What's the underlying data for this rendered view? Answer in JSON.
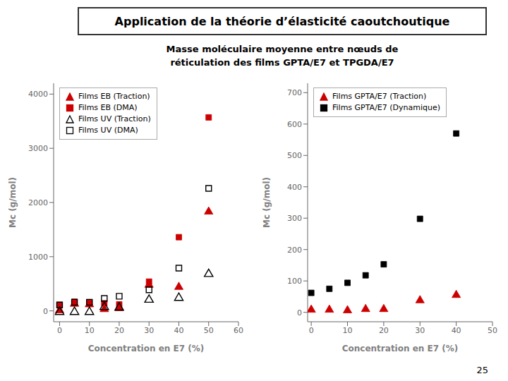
{
  "title": "Application de la théorie d’élasticité caoutchoutique",
  "subtitle": [
    "Masse moléculaire moyenne entre nœuds de",
    "réticulation des films GPTA/E7 et TPGDA/E7"
  ],
  "annotations": [
    "25"
  ],
  "chart_data": [
    {
      "type": "scatter",
      "xlabel": "Concentration en E7 (%)",
      "ylabel": "Mc (g/mol)",
      "xlim": [
        -2,
        60
      ],
      "ylim": [
        -200,
        4200
      ],
      "xticks": [
        0,
        10,
        20,
        30,
        40,
        50,
        60
      ],
      "yticks": [
        0,
        1000,
        2000,
        3000,
        4000
      ],
      "grid": false,
      "legend": "upper left",
      "series": [
        {
          "name": "Films EB (Traction)",
          "color": "#cc0000",
          "marker": "triangle",
          "x": [
            0,
            5,
            10,
            15,
            20,
            30,
            40,
            50
          ],
          "values": [
            10,
            130,
            120,
            30,
            50,
            480,
            440,
            1830
          ]
        },
        {
          "name": "Films EB (DMA)",
          "color": "#cc0000",
          "marker": "square",
          "x": [
            0,
            5,
            10,
            15,
            20,
            30,
            40,
            50
          ],
          "values": [
            110,
            170,
            160,
            140,
            120,
            540,
            1360,
            3570
          ]
        },
        {
          "name": "Films UV (Traction)",
          "color": "#000000",
          "marker": "triangle-open",
          "x": [
            0,
            5,
            10,
            15,
            20,
            30,
            40,
            50
          ],
          "values": [
            -20,
            -20,
            -20,
            70,
            60,
            205,
            240,
            680
          ]
        },
        {
          "name": "Films UV (DMA)",
          "color": "#000000",
          "marker": "square-open",
          "x": [
            0,
            5,
            10,
            15,
            20,
            30,
            40,
            50
          ],
          "values": [
            110,
            160,
            160,
            230,
            270,
            390,
            790,
            2260
          ]
        }
      ]
    },
    {
      "type": "scatter",
      "xlabel": "Concentration en E7 (%)",
      "ylabel": "Mc (g/mol)",
      "xlim": [
        -1,
        50
      ],
      "ylim": [
        -30,
        730
      ],
      "xticks": [
        0,
        10,
        20,
        30,
        40,
        50
      ],
      "yticks": [
        0,
        100,
        200,
        300,
        400,
        500,
        600,
        700
      ],
      "grid": false,
      "legend": "upper left",
      "series": [
        {
          "name": "Films GPTA/E7 (Traction)",
          "color": "#cc0000",
          "marker": "triangle",
          "x": [
            0,
            5,
            10,
            15,
            20,
            30,
            40
          ],
          "values": [
            8,
            8,
            6,
            10,
            10,
            38,
            55
          ]
        },
        {
          "name": "Films GPTA/E7 (Dynamique)",
          "color": "#000000",
          "marker": "square",
          "x": [
            0,
            5,
            10,
            15,
            20,
            30,
            40
          ],
          "values": [
            62,
            75,
            94,
            118,
            153,
            298,
            570
          ]
        }
      ]
    }
  ]
}
